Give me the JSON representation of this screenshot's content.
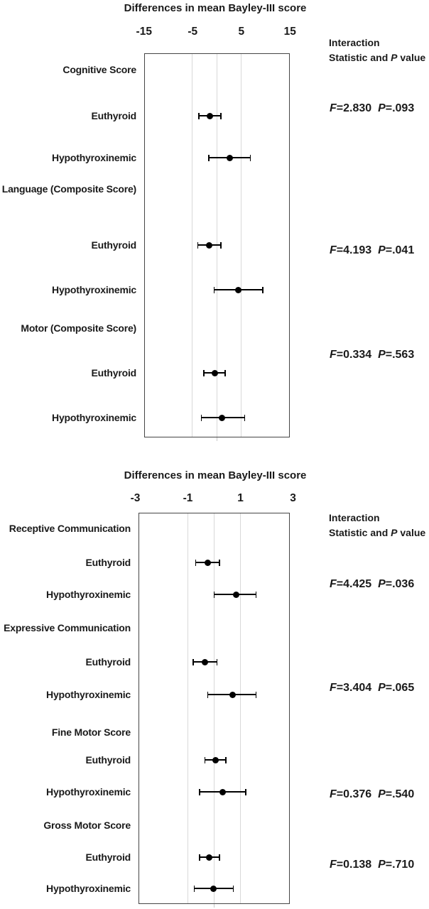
{
  "colors": {
    "text": "#1a1a1a",
    "marker": "#000000",
    "gridline": "#d8d8d8",
    "box_border": "#454545",
    "zero_tick": "#c8c8c8",
    "background": "#ffffff"
  },
  "stats_header_parts": [
    [
      {
        "text": "Interaction",
        "italic": false
      }
    ],
    [
      {
        "text": "Statistic and ",
        "italic": false
      },
      {
        "text": "P",
        "italic": true
      },
      {
        "text": " value",
        "italic": false
      }
    ]
  ],
  "chart_data": [
    {
      "type": "forest",
      "title": "Differences in mean Bayley-III score",
      "x_axis": {
        "range": [
          -15,
          15
        ],
        "ticks": [
          {
            "label": "-15",
            "value": -15
          },
          {
            "label": "-5",
            "value": -5
          },
          {
            "label": "5",
            "value": 5
          },
          {
            "label": "15",
            "value": 15
          }
        ],
        "gridlines_at": [
          -5,
          0,
          5
        ]
      },
      "legend_position": "right",
      "rows": [
        {
          "label": "Cognitive Score",
          "kind": "group"
        },
        {
          "label": "Euthyroid",
          "kind": "estimate",
          "mean": -1.4,
          "ci": [
            -3.7,
            0.8
          ]
        },
        {
          "label": "Hypothyroxinemic",
          "kind": "estimate",
          "mean": 2.7,
          "ci": [
            -1.7,
            6.9
          ]
        },
        {
          "label": "Language (Composite Score)",
          "kind": "group"
        },
        {
          "label": "Euthyroid",
          "kind": "estimate",
          "mean": -1.6,
          "ci": [
            -3.9,
            0.8
          ]
        },
        {
          "label": "Hypothyroxinemic",
          "kind": "estimate",
          "mean": 4.4,
          "ci": [
            -0.6,
            9.4
          ]
        },
        {
          "label": "Motor (Composite Score)",
          "kind": "group"
        },
        {
          "label": "Euthyroid",
          "kind": "estimate",
          "mean": -0.4,
          "ci": [
            -2.7,
            1.7
          ]
        },
        {
          "label": "Hypothyroxinemic",
          "kind": "estimate",
          "mean": 1.0,
          "ci": [
            -3.2,
            5.7
          ]
        }
      ],
      "interaction_stats": [
        {
          "f": 2.83,
          "p": 0.093,
          "parts": [
            {
              "text": "F",
              "italic": true
            },
            {
              "text": "=2.830",
              "italic": false
            },
            {
              "text": "  ",
              "italic": false
            },
            {
              "text": "P",
              "italic": true
            },
            {
              "text": "=.093",
              "italic": false
            }
          ]
        },
        {
          "f": 4.193,
          "p": 0.041,
          "parts": [
            {
              "text": "F",
              "italic": true
            },
            {
              "text": "=4.193",
              "italic": false
            },
            {
              "text": "  ",
              "italic": false
            },
            {
              "text": "P",
              "italic": true
            },
            {
              "text": "=.041",
              "italic": false
            }
          ]
        },
        {
          "f": 0.334,
          "p": 0.563,
          "parts": [
            {
              "text": "F",
              "italic": true
            },
            {
              "text": "=0.334",
              "italic": false
            },
            {
              "text": "  ",
              "italic": false
            },
            {
              "text": "P",
              "italic": true
            },
            {
              "text": "=.563",
              "italic": false
            }
          ]
        }
      ]
    },
    {
      "type": "forest",
      "title": "Differences in mean Bayley-III score",
      "x_axis": {
        "range": [
          -3,
          3
        ],
        "ticks": [
          {
            "label": "-3",
            "value": -3
          },
          {
            "label": "-1",
            "value": -1
          },
          {
            "label": "1",
            "value": 1
          },
          {
            "label": "3",
            "value": 3
          }
        ],
        "gridlines_at": [
          -1,
          0,
          1
        ]
      },
      "legend_position": "right",
      "rows": [
        {
          "label": "Receptive Communication",
          "kind": "group"
        },
        {
          "label": "Euthyroid",
          "kind": "estimate",
          "mean": -0.25,
          "ci": [
            -0.7,
            0.2
          ]
        },
        {
          "label": "Hypothyroxinemic",
          "kind": "estimate",
          "mean": 0.85,
          "ci": [
            0.0,
            1.6
          ]
        },
        {
          "label": "Expressive Communication",
          "kind": "group"
        },
        {
          "label": "Euthyroid",
          "kind": "estimate",
          "mean": -0.35,
          "ci": [
            -0.8,
            0.1
          ]
        },
        {
          "label": "Hypothyroxinemic",
          "kind": "estimate",
          "mean": 0.7,
          "ci": [
            -0.25,
            1.6
          ]
        },
        {
          "label": "Fine Motor Score",
          "kind": "group"
        },
        {
          "label": "Euthyroid",
          "kind": "estimate",
          "mean": 0.05,
          "ci": [
            -0.35,
            0.45
          ]
        },
        {
          "label": "Hypothyroxinemic",
          "kind": "estimate",
          "mean": 0.32,
          "ci": [
            -0.55,
            1.2
          ]
        },
        {
          "label": "Gross Motor Score",
          "kind": "group"
        },
        {
          "label": "Euthyroid",
          "kind": "estimate",
          "mean": -0.18,
          "ci": [
            -0.55,
            0.2
          ]
        },
        {
          "label": "Hypothyroxinemic",
          "kind": "estimate",
          "mean": -0.02,
          "ci": [
            -0.76,
            0.73
          ]
        }
      ],
      "interaction_stats": [
        {
          "f": 4.425,
          "p": 0.036,
          "parts": [
            {
              "text": "F",
              "italic": true
            },
            {
              "text": "=4.425",
              "italic": false
            },
            {
              "text": "  ",
              "italic": false
            },
            {
              "text": "P",
              "italic": true
            },
            {
              "text": "=.036",
              "italic": false
            }
          ]
        },
        {
          "f": 3.404,
          "p": 0.065,
          "parts": [
            {
              "text": "F",
              "italic": true
            },
            {
              "text": "=3.404",
              "italic": false
            },
            {
              "text": "  ",
              "italic": false
            },
            {
              "text": "P",
              "italic": true
            },
            {
              "text": "=.065",
              "italic": false
            }
          ]
        },
        {
          "f": 0.376,
          "p": 0.54,
          "parts": [
            {
              "text": "F",
              "italic": true
            },
            {
              "text": "=0.376",
              "italic": false
            },
            {
              "text": "  ",
              "italic": false
            },
            {
              "text": "P",
              "italic": true
            },
            {
              "text": "=.540",
              "italic": false
            }
          ]
        },
        {
          "f": 0.138,
          "p": 0.71,
          "parts": [
            {
              "text": "F",
              "italic": true
            },
            {
              "text": "=0.138",
              "italic": false
            },
            {
              "text": "  ",
              "italic": false
            },
            {
              "text": "P",
              "italic": true
            },
            {
              "text": "=.710",
              "italic": false
            }
          ]
        }
      ]
    }
  ]
}
